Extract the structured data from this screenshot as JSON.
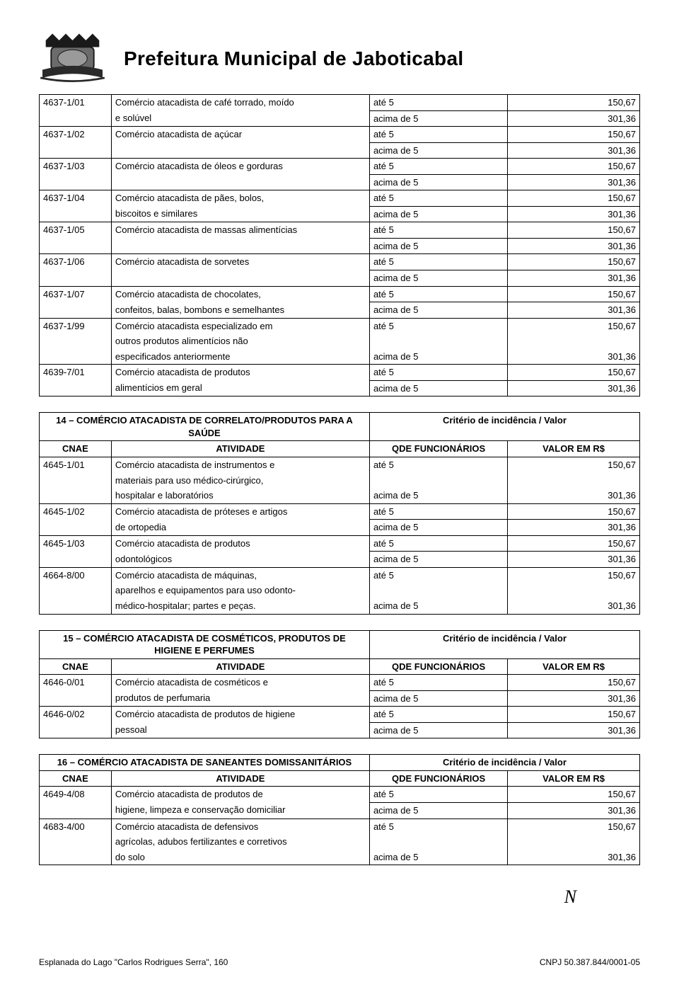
{
  "title": "Prefeitura Municipal de Jaboticabal",
  "footer": {
    "left": "Esplanada do Lago \"Carlos Rodrigues Serra\", 160",
    "right": "CNPJ 50.387.844/0001-05"
  },
  "signature": "N",
  "continuation_table": {
    "rows": [
      {
        "cnae": "4637-1/01",
        "atv1": "Comércio atacadista de café torrado, moído",
        "atv2": "e solúvel",
        "q1": "até 5",
        "q2": "acima de 5",
        "v1": "150,67",
        "v2": "301,36"
      },
      {
        "cnae": "4637-1/02",
        "atv1": "Comércio atacadista de açúcar",
        "atv2": "",
        "q1": "até 5",
        "q2": "acima de 5",
        "v1": "150,67",
        "v2": "301,36"
      },
      {
        "cnae": "4637-1/03",
        "atv1": "Comércio atacadista de óleos e gorduras",
        "atv2": "",
        "q1": "até 5",
        "q2": "acima de 5",
        "v1": "150,67",
        "v2": "301,36"
      },
      {
        "cnae": "4637-1/04",
        "atv1": "Comércio atacadista de pães, bolos,",
        "atv2": "biscoitos e similares",
        "q1": "até 5",
        "q2": "acima de 5",
        "v1": "150,67",
        "v2": "301,36"
      },
      {
        "cnae": "4637-1/05",
        "atv1": "Comércio atacadista de massas alimentícias",
        "atv2": "",
        "q1": "até 5",
        "q2": "acima de 5",
        "v1": "150,67",
        "v2": "301,36"
      },
      {
        "cnae": "4637-1/06",
        "atv1": "Comércio atacadista de sorvetes",
        "atv2": "",
        "q1": "até 5",
        "q2": "acima de 5",
        "v1": "150,67",
        "v2": "301,36"
      },
      {
        "cnae": "4637-1/07",
        "atv1": "Comércio atacadista de chocolates,",
        "atv2": "confeitos, balas, bombons e semelhantes",
        "q1": "até 5",
        "q2": "acima de 5",
        "v1": "150,67",
        "v2": "301,36"
      },
      {
        "cnae": "4637-1/99",
        "atv1": "Comércio atacadista especializado em",
        "atv2": "outros produtos alimentícios não",
        "atv3": "especificados anteriormente",
        "q1": "até 5",
        "q2": "acima de 5",
        "v1": "150,67",
        "v2": "301,36",
        "three": true
      },
      {
        "cnae": "4639-7/01",
        "atv1": "Comércio atacadista de produtos",
        "atv2": "alimentícios em geral",
        "q1": "até 5",
        "q2": "acima de 5",
        "v1": "150,67",
        "v2": "301,36"
      }
    ]
  },
  "section14": {
    "title_l": "14 – COMÉRCIO ATACADISTA DE CORRELATO/PRODUTOS PARA A SAÚDE",
    "title_r": "Critério de incidência / Valor",
    "h_cnae": "CNAE",
    "h_atv": "ATIVIDADE",
    "h_qde": "QDE FUNCIONÁRIOS",
    "h_val": "VALOR EM R$",
    "rows": [
      {
        "cnae": "4645-1/01",
        "atv1": "Comércio atacadista de instrumentos e",
        "atv2": "materiais para uso médico-cirúrgico,",
        "atv3": "hospitalar e laboratórios",
        "q1": "até 5",
        "q2": "acima de 5",
        "v1": "150,67",
        "v2": "301,36",
        "three": true
      },
      {
        "cnae": "4645-1/02",
        "atv1": "Comércio atacadista de próteses e artigos",
        "atv2": "de ortopedia",
        "q1": "até 5",
        "q2": "acima de 5",
        "v1": "150,67",
        "v2": "301,36"
      },
      {
        "cnae": "4645-1/03",
        "atv1": "Comércio atacadista de produtos",
        "atv2": "odontológicos",
        "q1": "até 5",
        "q2": "acima de 5",
        "v1": "150,67",
        "v2": "301,36"
      },
      {
        "cnae": "4664-8/00",
        "atv1": "Comércio atacadista de máquinas,",
        "atv2": "aparelhos e equipamentos para uso odonto-",
        "atv3": "médico-hospitalar; partes e peças.",
        "q1": "até 5",
        "q2": "acima de 5",
        "v1": "150,67",
        "v2": "301,36",
        "three": true
      }
    ]
  },
  "section15": {
    "title_l": "15 – COMÉRCIO ATACADISTA DE COSMÉTICOS, PRODUTOS DE HIGIENE E PERFUMES",
    "title_r": "Critério de incidência / Valor",
    "h_cnae": "CNAE",
    "h_atv": "ATIVIDADE",
    "h_qde": "QDE FUNCIONÁRIOS",
    "h_val": "VALOR EM R$",
    "rows": [
      {
        "cnae": "4646-0/01",
        "atv1": "Comércio atacadista de cosméticos e",
        "atv2": "produtos de perfumaria",
        "q1": "até 5",
        "q2": "acima de 5",
        "v1": "150,67",
        "v2": "301,36"
      },
      {
        "cnae": "4646-0/02",
        "atv1": "Comércio atacadista de produtos de higiene",
        "atv2": "pessoal",
        "q1": "até 5",
        "q2": "acima de 5",
        "v1": "150,67",
        "v2": "301,36"
      }
    ]
  },
  "section16": {
    "title_l": "16 – COMÉRCIO ATACADISTA DE SANEANTES DOMISSANITÁRIOS",
    "title_r": "Critério de incidência / Valor",
    "h_cnae": "CNAE",
    "h_atv": "ATIVIDADE",
    "h_qde": "QDE FUNCIONÁRIOS",
    "h_val": "VALOR EM R$",
    "rows": [
      {
        "cnae": "4649-4/08",
        "atv1": "Comércio atacadista de produtos de",
        "atv2": "higiene, limpeza e conservação domiciliar",
        "q1": "até 5",
        "q2": "acima de 5",
        "v1": "150,67",
        "v2": "301,36"
      },
      {
        "cnae": "4683-4/00",
        "atv1": "Comércio atacadista de defensivos",
        "atv2": "agrícolas, adubos fertilizantes e corretivos",
        "atv3": "do solo",
        "q1": "até 5",
        "q2": "acima de 5",
        "v1": "150,67",
        "v2": "301,36",
        "three": true
      }
    ]
  }
}
